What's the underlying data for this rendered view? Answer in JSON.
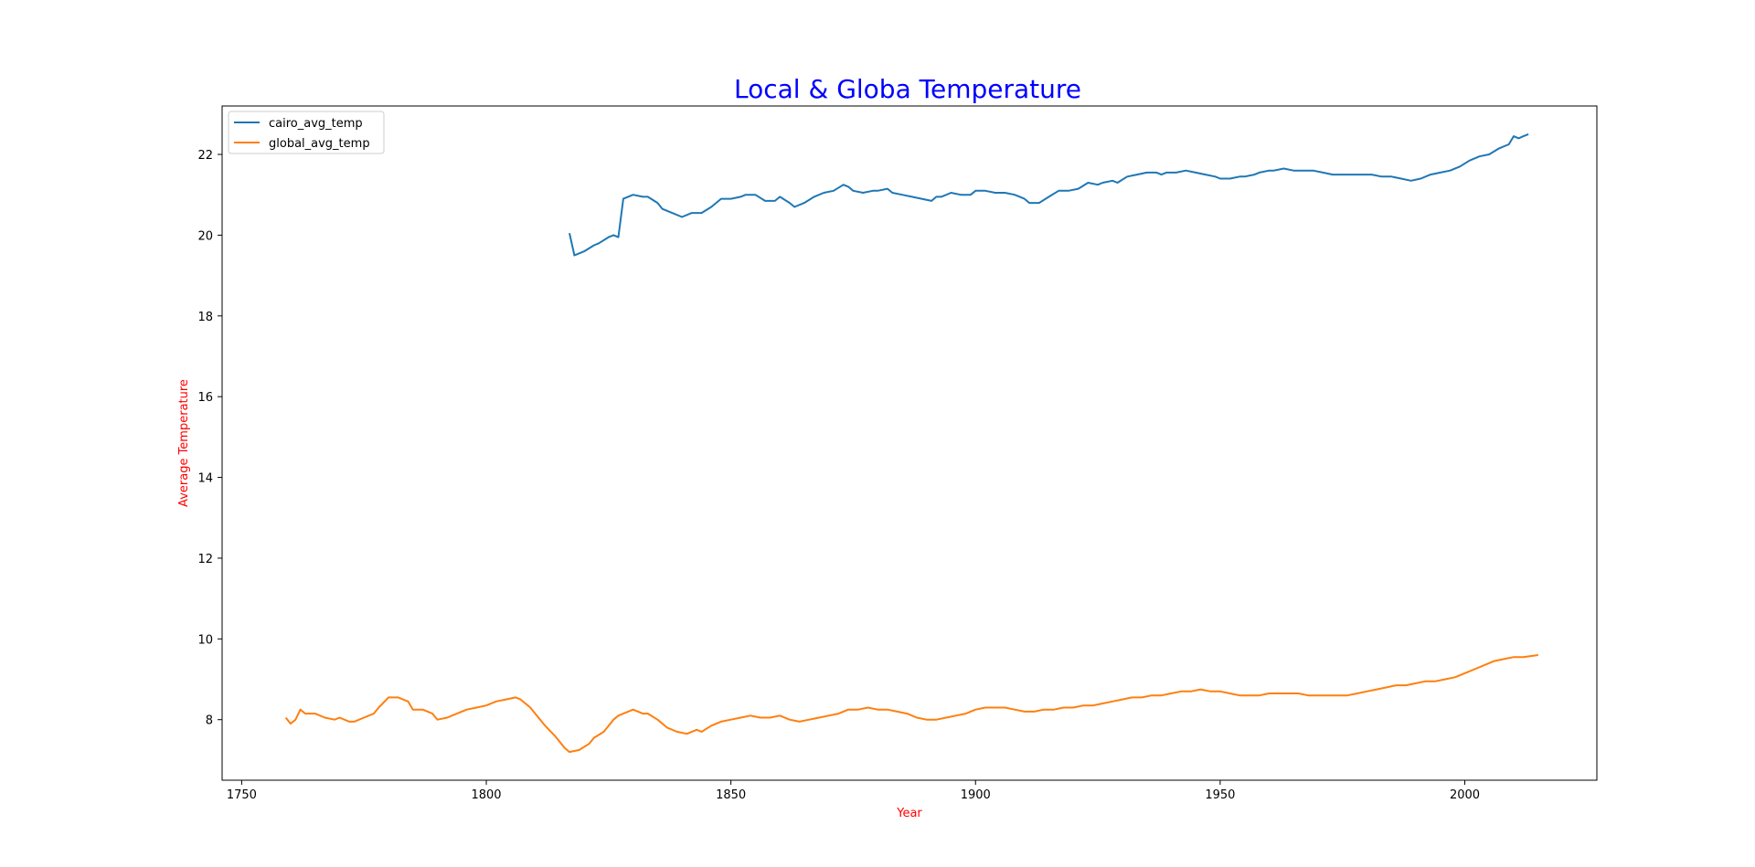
{
  "chart_data": {
    "type": "line",
    "title": "Local & Globa Temperature",
    "xlabel": "Year",
    "ylabel": "Average Temperature",
    "xlim": [
      1746,
      2027
    ],
    "ylim": [
      6.5,
      23.2
    ],
    "xticks": [
      1750,
      1800,
      1850,
      1900,
      1950,
      2000
    ],
    "yticks": [
      8,
      10,
      12,
      14,
      16,
      18,
      20,
      22
    ],
    "grid": false,
    "legend_position": "top-left",
    "colors": {
      "title": "#0000ff",
      "axis_label": "#ff0000",
      "axes": "#000000"
    },
    "series": [
      {
        "name": "cairo_avg_temp",
        "color": "#1f77b4",
        "x": [
          1817,
          1818,
          1820,
          1822,
          1823,
          1825,
          1826,
          1827,
          1828,
          1830,
          1832,
          1833,
          1835,
          1836,
          1838,
          1840,
          1842,
          1844,
          1846,
          1848,
          1850,
          1852,
          1853,
          1855,
          1857,
          1859,
          1860,
          1862,
          1863,
          1865,
          1867,
          1869,
          1871,
          1873,
          1874,
          1875,
          1877,
          1879,
          1880,
          1882,
          1883,
          1885,
          1887,
          1889,
          1891,
          1892,
          1893,
          1895,
          1897,
          1899,
          1900,
          1902,
          1904,
          1906,
          1908,
          1910,
          1911,
          1913,
          1915,
          1917,
          1919,
          1921,
          1923,
          1925,
          1926,
          1928,
          1929,
          1931,
          1933,
          1935,
          1937,
          1938,
          1939,
          1941,
          1943,
          1945,
          1947,
          1949,
          1950,
          1952,
          1954,
          1955,
          1957,
          1958,
          1960,
          1961,
          1963,
          1965,
          1966,
          1968,
          1969,
          1971,
          1973,
          1975,
          1977,
          1979,
          1981,
          1983,
          1985,
          1987,
          1989,
          1991,
          1993,
          1995,
          1997,
          1999,
          2001,
          2003,
          2005,
          2007,
          2009,
          2010,
          2011,
          2012,
          2013
        ],
        "values": [
          20.05,
          19.5,
          19.6,
          19.75,
          19.8,
          19.95,
          20.0,
          19.95,
          20.9,
          21.0,
          20.95,
          20.95,
          20.8,
          20.65,
          20.55,
          20.45,
          20.55,
          20.55,
          20.7,
          20.9,
          20.9,
          20.95,
          21.0,
          21.0,
          20.85,
          20.85,
          20.95,
          20.8,
          20.7,
          20.8,
          20.95,
          21.05,
          21.1,
          21.25,
          21.2,
          21.1,
          21.05,
          21.1,
          21.1,
          21.15,
          21.05,
          21.0,
          20.95,
          20.9,
          20.85,
          20.95,
          20.95,
          21.05,
          21.0,
          21.0,
          21.1,
          21.1,
          21.05,
          21.05,
          21.0,
          20.9,
          20.8,
          20.8,
          20.95,
          21.1,
          21.1,
          21.15,
          21.3,
          21.25,
          21.3,
          21.35,
          21.3,
          21.45,
          21.5,
          21.55,
          21.55,
          21.5,
          21.55,
          21.55,
          21.6,
          21.55,
          21.5,
          21.45,
          21.4,
          21.4,
          21.45,
          21.45,
          21.5,
          21.55,
          21.6,
          21.6,
          21.65,
          21.6,
          21.6,
          21.6,
          21.6,
          21.55,
          21.5,
          21.5,
          21.5,
          21.5,
          21.5,
          21.45,
          21.45,
          21.4,
          21.35,
          21.4,
          21.5,
          21.55,
          21.6,
          21.7,
          21.85,
          21.95,
          22.0,
          22.15,
          22.25,
          22.45,
          22.4,
          22.45,
          22.5
        ]
      },
      {
        "name": "global_avg_temp",
        "color": "#ff7f0e",
        "x": [
          1759,
          1760,
          1761,
          1762,
          1763,
          1765,
          1767,
          1769,
          1770,
          1772,
          1773,
          1775,
          1777,
          1778,
          1780,
          1782,
          1784,
          1785,
          1787,
          1789,
          1790,
          1792,
          1794,
          1796,
          1798,
          1800,
          1802,
          1804,
          1806,
          1807,
          1809,
          1811,
          1812,
          1814,
          1816,
          1817,
          1819,
          1821,
          1822,
          1824,
          1826,
          1827,
          1829,
          1830,
          1832,
          1833,
          1835,
          1837,
          1839,
          1841,
          1843,
          1844,
          1846,
          1848,
          1850,
          1852,
          1854,
          1856,
          1858,
          1860,
          1862,
          1864,
          1866,
          1868,
          1870,
          1872,
          1874,
          1876,
          1878,
          1880,
          1882,
          1884,
          1886,
          1888,
          1890,
          1892,
          1894,
          1896,
          1898,
          1900,
          1902,
          1904,
          1906,
          1908,
          1910,
          1912,
          1914,
          1916,
          1918,
          1920,
          1922,
          1924,
          1926,
          1928,
          1930,
          1932,
          1934,
          1936,
          1938,
          1940,
          1942,
          1944,
          1946,
          1948,
          1950,
          1952,
          1954,
          1956,
          1958,
          1960,
          1962,
          1964,
          1966,
          1968,
          1970,
          1972,
          1974,
          1976,
          1978,
          1980,
          1982,
          1984,
          1986,
          1988,
          1990,
          1992,
          1994,
          1996,
          1998,
          2000,
          2002,
          2004,
          2006,
          2008,
          2010,
          2012,
          2015
        ],
        "values": [
          8.05,
          7.9,
          8.0,
          8.25,
          8.15,
          8.15,
          8.05,
          8.0,
          8.05,
          7.95,
          7.95,
          8.05,
          8.15,
          8.3,
          8.55,
          8.55,
          8.45,
          8.25,
          8.25,
          8.15,
          8.0,
          8.05,
          8.15,
          8.25,
          8.3,
          8.35,
          8.45,
          8.5,
          8.55,
          8.5,
          8.3,
          8.0,
          7.85,
          7.6,
          7.3,
          7.2,
          7.25,
          7.4,
          7.55,
          7.7,
          8.0,
          8.1,
          8.2,
          8.25,
          8.15,
          8.15,
          8.0,
          7.8,
          7.7,
          7.65,
          7.75,
          7.7,
          7.85,
          7.95,
          8.0,
          8.05,
          8.1,
          8.05,
          8.05,
          8.1,
          8.0,
          7.95,
          8.0,
          8.05,
          8.1,
          8.15,
          8.25,
          8.25,
          8.3,
          8.25,
          8.25,
          8.2,
          8.15,
          8.05,
          8.0,
          8.0,
          8.05,
          8.1,
          8.15,
          8.25,
          8.3,
          8.3,
          8.3,
          8.25,
          8.2,
          8.2,
          8.25,
          8.25,
          8.3,
          8.3,
          8.35,
          8.35,
          8.4,
          8.45,
          8.5,
          8.55,
          8.55,
          8.6,
          8.6,
          8.65,
          8.7,
          8.7,
          8.75,
          8.7,
          8.7,
          8.65,
          8.6,
          8.6,
          8.6,
          8.65,
          8.65,
          8.65,
          8.65,
          8.6,
          8.6,
          8.6,
          8.6,
          8.6,
          8.65,
          8.7,
          8.75,
          8.8,
          8.85,
          8.85,
          8.9,
          8.95,
          8.95,
          9.0,
          9.05,
          9.15,
          9.25,
          9.35,
          9.45,
          9.5,
          9.55,
          9.55,
          9.6
        ]
      }
    ]
  }
}
